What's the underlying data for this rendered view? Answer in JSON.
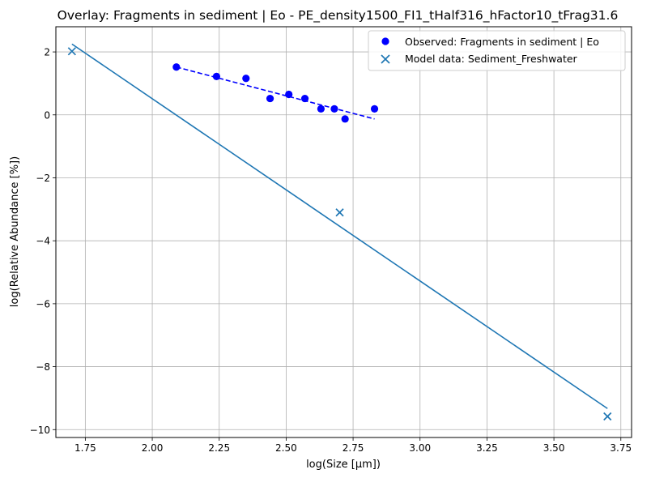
{
  "chart_data": {
    "type": "scatter",
    "title": "Overlay: Fragments in sediment | Eo - PE_density1500_FI1_tHalf316_hFactor10_tFrag31.6",
    "xlabel": "log(Size [µm])",
    "ylabel": "log(Relative Abundance [%])",
    "xlim": [
      1.64,
      3.79
    ],
    "ylim": [
      -10.25,
      2.8
    ],
    "x_ticks": [
      1.75,
      2.0,
      2.25,
      2.5,
      2.75,
      3.0,
      3.25,
      3.5,
      3.75
    ],
    "x_tick_labels": [
      "1.75",
      "2.00",
      "2.25",
      "2.50",
      "2.75",
      "3.00",
      "3.25",
      "3.50",
      "3.75"
    ],
    "y_ticks": [
      2,
      0,
      -2,
      -4,
      -6,
      -8,
      -10
    ],
    "y_tick_labels": [
      "2",
      "0",
      "−2",
      "−4",
      "−6",
      "−8",
      "−10"
    ],
    "grid": true,
    "legend_position": "top-right",
    "series": [
      {
        "name": "Observed: Fragments in sediment | Eo",
        "kind": "scatter",
        "marker": "circle",
        "color": "#0000ff",
        "x": [
          2.09,
          2.24,
          2.35,
          2.44,
          2.51,
          2.57,
          2.63,
          2.68,
          2.72,
          2.83
        ],
        "y": [
          1.52,
          1.22,
          1.16,
          0.52,
          0.65,
          0.52,
          0.19,
          0.19,
          -0.13,
          0.19
        ]
      },
      {
        "name": "Model data: Sediment_Freshwater",
        "kind": "scatter",
        "marker": "x",
        "color": "#1f77b4",
        "x": [
          1.7,
          2.7,
          3.7
        ],
        "y": [
          2.02,
          -3.1,
          -9.58
        ]
      }
    ],
    "fit_lines": [
      {
        "kind": "line",
        "style": "dashed",
        "color": "#0000ff",
        "x": [
          2.09,
          2.83
        ],
        "y": [
          1.52,
          -0.13
        ]
      },
      {
        "kind": "line",
        "style": "solid",
        "color": "#1f77b4",
        "x": [
          1.7,
          3.7
        ],
        "y": [
          2.25,
          -9.33
        ]
      }
    ]
  }
}
